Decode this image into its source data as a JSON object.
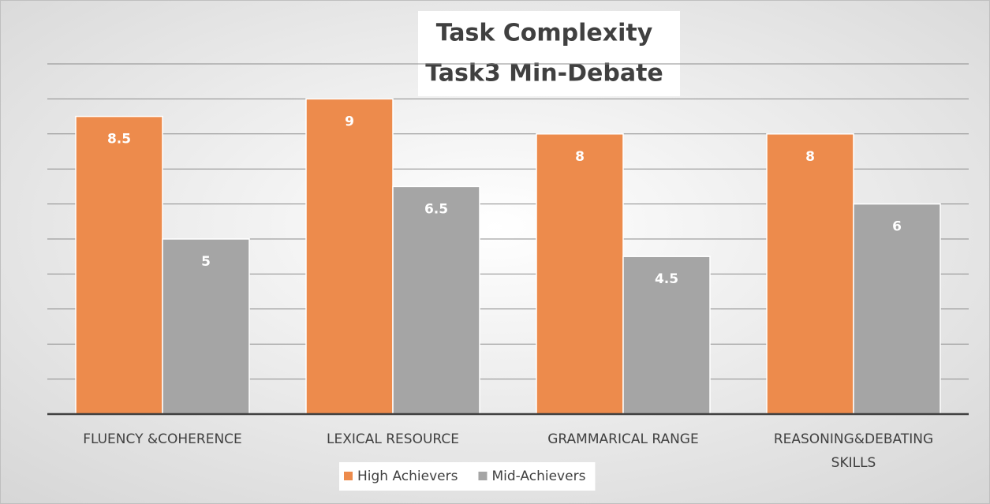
{
  "chart_data": {
    "type": "bar",
    "title": "Task Complexity",
    "subtitle": "Task3  Min-Debate",
    "categories": [
      "FLUENCY &COHERENCE",
      "LEXICAL RESOURCE",
      "GRAMMARICAL RANGE",
      "REASONING&DEBATING SKILLS"
    ],
    "series": [
      {
        "name": "High Achievers",
        "color": "#ed8b4c",
        "values": [
          8.5,
          9,
          8,
          8
        ]
      },
      {
        "name": "Mid-Achievers",
        "color": "#a5a5a5",
        "values": [
          5,
          6.5,
          4.5,
          6
        ]
      }
    ],
    "ylim": [
      0,
      10
    ],
    "yticks": [
      0,
      1,
      2,
      3,
      4,
      5,
      6,
      7,
      8,
      9,
      10
    ],
    "grid": true,
    "legend": "bottom"
  }
}
